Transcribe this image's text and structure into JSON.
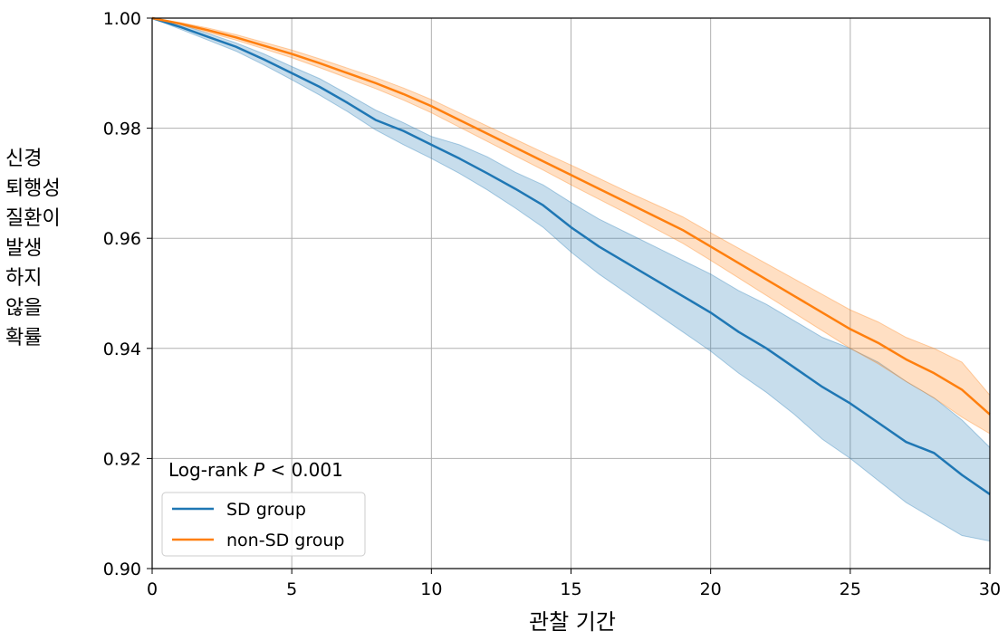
{
  "chart_data": {
    "type": "line",
    "title": "",
    "xlabel": "관찰 기간",
    "ylabel_lines": [
      "신경",
      "퇴행성",
      "질환이",
      "발생",
      "하지",
      "않을",
      "확률"
    ],
    "xlim": [
      0,
      30
    ],
    "ylim": [
      0.9,
      1.0
    ],
    "x_ticks": [
      0,
      5,
      10,
      15,
      20,
      25,
      30
    ],
    "x_tick_labels": [
      "0",
      "5",
      "10",
      "15",
      "20",
      "25",
      "30"
    ],
    "y_ticks": [
      0.9,
      0.92,
      0.94,
      0.96,
      0.98,
      1.0
    ],
    "y_tick_labels": [
      "0.90",
      "0.92",
      "0.94",
      "0.96",
      "0.98",
      "1.00"
    ],
    "grid": true,
    "annotation": {
      "prefix": "Log-rank ",
      "italic": "P",
      "suffix": " < 0.001"
    },
    "legend_position": "lower-left",
    "series": [
      {
        "name": "SD group",
        "color": "#1f77b4",
        "band_color": "#1f77b4",
        "x": [
          0,
          1,
          2,
          3,
          4,
          5,
          6,
          7,
          8,
          9,
          10,
          11,
          12,
          13,
          14,
          15,
          16,
          17,
          18,
          19,
          20,
          21,
          22,
          23,
          24,
          25,
          26,
          27,
          28,
          29,
          30
        ],
        "y": [
          1.0,
          0.9984,
          0.9966,
          0.9948,
          0.9925,
          0.99,
          0.9875,
          0.9846,
          0.9815,
          0.9795,
          0.977,
          0.9745,
          0.9718,
          0.969,
          0.966,
          0.962,
          0.9585,
          0.9555,
          0.9525,
          0.9495,
          0.9465,
          0.943,
          0.94,
          0.9365,
          0.933,
          0.93,
          0.9265,
          0.923,
          0.921,
          0.917,
          0.9135
        ],
        "lower": [
          1.0,
          0.998,
          0.996,
          0.994,
          0.9915,
          0.9888,
          0.986,
          0.983,
          0.9797,
          0.977,
          0.9745,
          0.9718,
          0.9688,
          0.9655,
          0.962,
          0.9575,
          0.9535,
          0.95,
          0.9465,
          0.943,
          0.9395,
          0.9355,
          0.932,
          0.928,
          0.9235,
          0.92,
          0.916,
          0.912,
          0.909,
          0.906,
          0.905
        ],
        "upper": [
          1.0,
          0.9989,
          0.9972,
          0.9955,
          0.9935,
          0.9912,
          0.989,
          0.9862,
          0.9833,
          0.981,
          0.9785,
          0.977,
          0.9748,
          0.972,
          0.9697,
          0.9665,
          0.9635,
          0.961,
          0.9585,
          0.956,
          0.9535,
          0.9505,
          0.948,
          0.945,
          0.942,
          0.94,
          0.9375,
          0.934,
          0.931,
          0.927,
          0.922
        ]
      },
      {
        "name": "non-SD group",
        "color": "#ff7f0e",
        "band_color": "#ff7f0e",
        "x": [
          0,
          1,
          2,
          3,
          4,
          5,
          6,
          7,
          8,
          9,
          10,
          11,
          12,
          13,
          14,
          15,
          16,
          17,
          18,
          19,
          20,
          21,
          22,
          23,
          24,
          25,
          26,
          27,
          28,
          29,
          30
        ],
        "y": [
          1.0,
          0.999,
          0.9978,
          0.9965,
          0.995,
          0.9935,
          0.9918,
          0.99,
          0.9882,
          0.9862,
          0.984,
          0.9815,
          0.979,
          0.9765,
          0.974,
          0.9715,
          0.969,
          0.9665,
          0.964,
          0.9615,
          0.9585,
          0.9555,
          0.9525,
          0.9495,
          0.9465,
          0.9435,
          0.941,
          0.938,
          0.9355,
          0.9325,
          0.928
        ],
        "lower": [
          1.0,
          0.9988,
          0.9974,
          0.996,
          0.9944,
          0.9928,
          0.991,
          0.9891,
          0.9872,
          0.9851,
          0.9828,
          0.9802,
          0.9776,
          0.975,
          0.9724,
          0.9697,
          0.9671,
          0.9645,
          0.9618,
          0.9591,
          0.956,
          0.9528,
          0.9496,
          0.9464,
          0.9432,
          0.94,
          0.9372,
          0.934,
          0.931,
          0.9275,
          0.9245
        ],
        "upper": [
          1.0,
          0.9992,
          0.9982,
          0.997,
          0.9956,
          0.9942,
          0.9926,
          0.9909,
          0.9892,
          0.9873,
          0.9852,
          0.9828,
          0.9804,
          0.978,
          0.9756,
          0.9733,
          0.9709,
          0.9685,
          0.9662,
          0.9639,
          0.961,
          0.9582,
          0.9554,
          0.9526,
          0.9498,
          0.947,
          0.9448,
          0.942,
          0.94,
          0.9375,
          0.9315
        ]
      }
    ]
  }
}
